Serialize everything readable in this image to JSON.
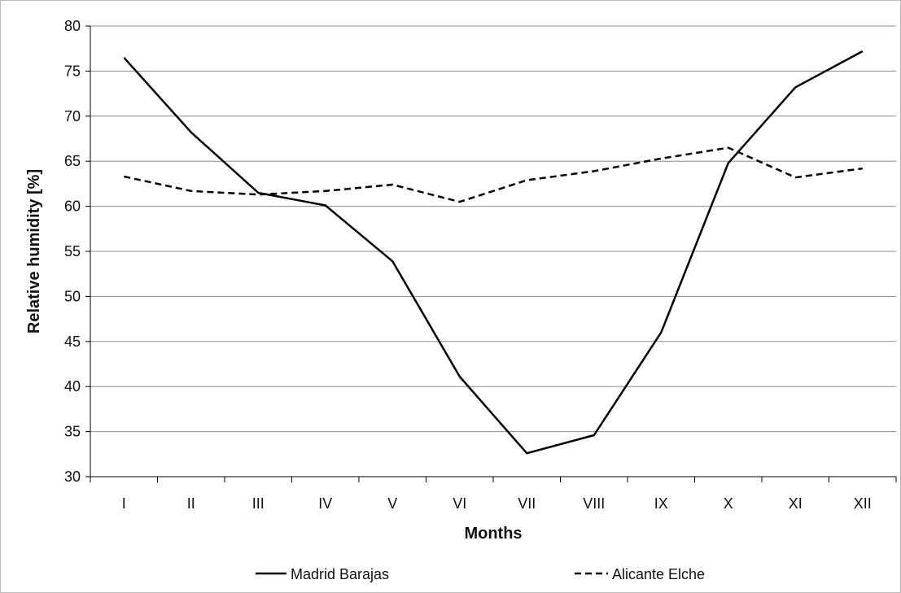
{
  "chart_data": {
    "type": "line",
    "title": "",
    "xlabel": "Months",
    "ylabel": "Relative humidity [%]",
    "categories": [
      "I",
      "II",
      "III",
      "IV",
      "V",
      "VI",
      "VII",
      "VIII",
      "IX",
      "X",
      "XI",
      "XII"
    ],
    "ylim": [
      30,
      80
    ],
    "yticks": [
      "30",
      "35",
      "40",
      "45",
      "50",
      "55",
      "60",
      "65",
      "70",
      "75",
      "80"
    ],
    "grid": true,
    "legend": "bottom",
    "series": [
      {
        "name": "Madrid Barajas",
        "style": "solid",
        "color": "#000000",
        "values": [
          76.5,
          68.2,
          61.5,
          60.1,
          53.9,
          41.1,
          32.6,
          34.6,
          46.0,
          64.8,
          73.2,
          77.2
        ]
      },
      {
        "name": "Alicante Elche",
        "style": "dashed",
        "color": "#000000",
        "values": [
          63.3,
          61.7,
          61.3,
          61.7,
          62.4,
          60.5,
          62.9,
          63.9,
          65.3,
          66.5,
          63.2,
          64.2
        ]
      }
    ]
  }
}
